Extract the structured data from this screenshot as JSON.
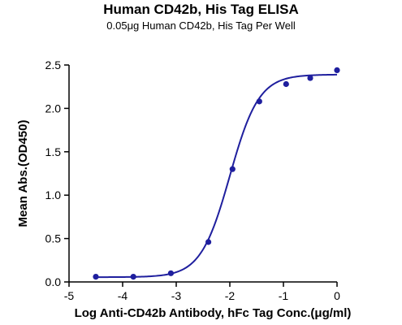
{
  "chart_data": {
    "type": "scatter",
    "title": "Human CD42b, His Tag ELISA",
    "subtitle": "0.05μg Human CD42b, His Tag Per Well",
    "xlabel": "Log Anti-CD42b Antibody, hFc Tag Conc.(μg/ml)",
    "ylabel": "Mean Abs.(OD450)",
    "xlim": [
      -5,
      0
    ],
    "ylim": [
      0,
      2.5
    ],
    "x_ticks": [
      -5,
      -4,
      -3,
      -2,
      -1,
      0
    ],
    "x_tick_labels": [
      "-5",
      "-4",
      "-3",
      "-2",
      "-1",
      "0"
    ],
    "y_ticks": [
      0,
      0.5,
      1.0,
      1.5,
      2.0,
      2.5
    ],
    "y_tick_labels": [
      "0.0",
      "0.5",
      "1.0",
      "1.5",
      "2.0",
      "2.5"
    ],
    "grid": false,
    "series": [
      {
        "points": [
          {
            "x": -4.5,
            "y": 0.06
          },
          {
            "x": -3.8,
            "y": 0.06
          },
          {
            "x": -3.1,
            "y": 0.1
          },
          {
            "x": -2.4,
            "y": 0.46
          },
          {
            "x": -1.95,
            "y": 1.3
          },
          {
            "x": -1.45,
            "y": 2.08
          },
          {
            "x": -0.95,
            "y": 2.28
          },
          {
            "x": -0.5,
            "y": 2.35
          },
          {
            "x": 0.0,
            "y": 2.44
          }
        ],
        "fit": {
          "model": "4PL",
          "bottom": 0.055,
          "top": 2.39,
          "log_ec50": -2.0,
          "hill": 1.6
        }
      }
    ],
    "color": "#1f1f9e"
  }
}
